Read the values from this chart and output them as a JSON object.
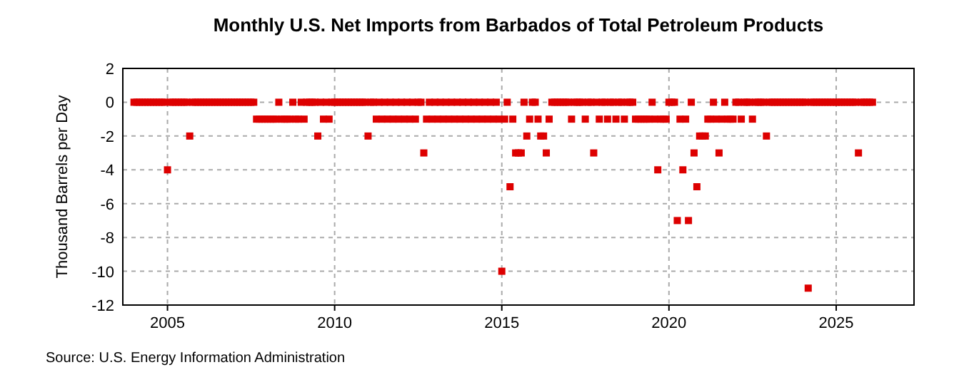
{
  "chart_data": {
    "type": "scatter",
    "title": "Monthly U.S. Net Imports from Barbados of Total Petroleum Products",
    "ylabel": "Thousand Barrels per Day",
    "annotations": [
      "Source: U.S. Energy Information Administration"
    ],
    "x": [
      "2004-01",
      "2004-02",
      "2004-03",
      "2004-04",
      "2004-05",
      "2004-06",
      "2004-07",
      "2004-08",
      "2004-09",
      "2004-10",
      "2004-11",
      "2004-12",
      "2005-01",
      "2005-02",
      "2005-03",
      "2005-04",
      "2005-05",
      "2005-06",
      "2005-07",
      "2005-08",
      "2005-09",
      "2005-10",
      "2005-11",
      "2005-12",
      "2006-01",
      "2006-02",
      "2006-03",
      "2006-04",
      "2006-05",
      "2006-06",
      "2006-07",
      "2006-08",
      "2006-09",
      "2006-10",
      "2006-11",
      "2006-12",
      "2007-01",
      "2007-02",
      "2007-03",
      "2007-04",
      "2007-05",
      "2007-06",
      "2007-07",
      "2007-08",
      "2007-09",
      "2007-10",
      "2007-11",
      "2007-12",
      "2008-01",
      "2008-02",
      "2008-03",
      "2008-04",
      "2008-05",
      "2008-06",
      "2008-07",
      "2008-08",
      "2008-09",
      "2008-10",
      "2008-11",
      "2008-12",
      "2009-01",
      "2009-02",
      "2009-03",
      "2009-04",
      "2009-05",
      "2009-06",
      "2009-07",
      "2009-08",
      "2009-09",
      "2009-10",
      "2009-11",
      "2009-12",
      "2010-01",
      "2010-02",
      "2010-03",
      "2010-04",
      "2010-05",
      "2010-06",
      "2010-07",
      "2010-08",
      "2010-09",
      "2010-10",
      "2010-11",
      "2010-12",
      "2011-01",
      "2011-02",
      "2011-03",
      "2011-04",
      "2011-05",
      "2011-06",
      "2011-07",
      "2011-08",
      "2011-09",
      "2011-10",
      "2011-11",
      "2011-12",
      "2012-01",
      "2012-02",
      "2012-03",
      "2012-04",
      "2012-05",
      "2012-06",
      "2012-07",
      "2012-08",
      "2012-09",
      "2012-10",
      "2012-11",
      "2012-12",
      "2013-01",
      "2013-02",
      "2013-03",
      "2013-04",
      "2013-05",
      "2013-06",
      "2013-07",
      "2013-08",
      "2013-09",
      "2013-10",
      "2013-11",
      "2013-12",
      "2014-01",
      "2014-02",
      "2014-03",
      "2014-04",
      "2014-05",
      "2014-06",
      "2014-07",
      "2014-08",
      "2014-09",
      "2014-10",
      "2014-11",
      "2014-12",
      "2015-01",
      "2015-02",
      "2015-03",
      "2015-04",
      "2015-05",
      "2015-06",
      "2015-07",
      "2015-08",
      "2015-09",
      "2015-10",
      "2015-11",
      "2015-12",
      "2016-01",
      "2016-02",
      "2016-03",
      "2016-04",
      "2016-05",
      "2016-06",
      "2016-07",
      "2016-08",
      "2016-09",
      "2016-10",
      "2016-11",
      "2016-12",
      "2017-01",
      "2017-02",
      "2017-03",
      "2017-04",
      "2017-05",
      "2017-06",
      "2017-07",
      "2017-08",
      "2017-09",
      "2017-10",
      "2017-11",
      "2017-12",
      "2018-01",
      "2018-02",
      "2018-03",
      "2018-04",
      "2018-05",
      "2018-06",
      "2018-07",
      "2018-08",
      "2018-09",
      "2018-10",
      "2018-11",
      "2018-12",
      "2019-01",
      "2019-02",
      "2019-03",
      "2019-04",
      "2019-05",
      "2019-06",
      "2019-07",
      "2019-08",
      "2019-09",
      "2019-10",
      "2019-11",
      "2019-12",
      "2020-01",
      "2020-02",
      "2020-03",
      "2020-04",
      "2020-05",
      "2020-06",
      "2020-07",
      "2020-08",
      "2020-09",
      "2020-10",
      "2020-11",
      "2020-12",
      "2021-01",
      "2021-02",
      "2021-03",
      "2021-04",
      "2021-05",
      "2021-06",
      "2021-07",
      "2021-08",
      "2021-09",
      "2021-10",
      "2021-11",
      "2021-12",
      "2022-01",
      "2022-02",
      "2022-03",
      "2022-04",
      "2022-05",
      "2022-06",
      "2022-07",
      "2022-08",
      "2022-09",
      "2022-10",
      "2022-11",
      "2022-12",
      "2023-01",
      "2023-02",
      "2023-03",
      "2023-04",
      "2023-05",
      "2023-06",
      "2023-07",
      "2023-08",
      "2023-09",
      "2023-10",
      "2023-11",
      "2023-12",
      "2024-01",
      "2024-02",
      "2024-03",
      "2024-04",
      "2024-05",
      "2024-06",
      "2024-07",
      "2024-08",
      "2024-09",
      "2024-10",
      "2024-11",
      "2024-12",
      "2025-01",
      "2025-02",
      "2025-03",
      "2025-04",
      "2025-05",
      "2025-06",
      "2025-07",
      "2025-08",
      "2025-09",
      "2025-10",
      "2025-11",
      "2025-12",
      "2026-01",
      "2026-02"
    ],
    "series": [
      {
        "color": "#dd0000",
        "values": [
          0,
          0,
          0,
          0,
          0,
          0,
          0,
          0,
          0,
          0,
          0,
          0,
          -4,
          0,
          0,
          0,
          0,
          0,
          0,
          0,
          -2,
          0,
          0,
          0,
          0,
          0,
          0,
          0,
          0,
          0,
          0,
          0,
          0,
          0,
          0,
          0,
          0,
          0,
          0,
          0,
          0,
          0,
          0,
          0,
          -1,
          -1,
          -1,
          -1,
          -1,
          -1,
          -1,
          -1,
          0,
          -1,
          -1,
          -1,
          -1,
          0,
          -1,
          -1,
          0,
          -1,
          0,
          0,
          0,
          0,
          -2,
          0,
          -1,
          0,
          -1,
          0,
          0,
          0,
          0,
          0,
          0,
          0,
          0,
          0,
          0,
          0,
          0,
          0,
          -2,
          0,
          0,
          -1,
          0,
          -1,
          0,
          -1,
          0,
          -1,
          0,
          -1,
          0,
          -1,
          0,
          -1,
          0,
          -1,
          0,
          0,
          -3,
          -1,
          0,
          -1,
          0,
          -1,
          0,
          -1,
          0,
          -1,
          0,
          -1,
          0,
          -1,
          0,
          -1,
          0,
          -1,
          0,
          -1,
          0,
          -1,
          0,
          -1,
          0,
          -1,
          0,
          -1,
          -10,
          -1,
          0,
          -5,
          -1,
          -3,
          -3,
          -3,
          0,
          -2,
          -1,
          0,
          0,
          -1,
          -2,
          -2,
          -3,
          -1,
          0,
          0,
          0,
          0,
          0,
          0,
          0,
          -1,
          0,
          0,
          0,
          0,
          -1,
          0,
          0,
          -3,
          0,
          -1,
          0,
          0,
          -1,
          0,
          0,
          -1,
          0,
          0,
          -1,
          0,
          0,
          0,
          -1,
          -1,
          -1,
          -1,
          -1,
          -1,
          0,
          -1,
          -4,
          -1,
          -1,
          -1,
          0,
          0,
          0,
          -7,
          -1,
          -4,
          -1,
          -7,
          0,
          -3,
          -5,
          -2,
          -2,
          -2,
          -1,
          -1,
          0,
          -1,
          -3,
          -1,
          0,
          -1,
          -1,
          -1,
          0,
          0,
          -1,
          0,
          0,
          0,
          -1,
          0,
          0,
          0,
          0,
          -2,
          0,
          0,
          0,
          0,
          0,
          0,
          0,
          0,
          0,
          0,
          0,
          0,
          0,
          0,
          -11,
          0,
          0,
          0,
          0,
          0,
          0,
          0,
          0,
          0,
          0,
          0,
          0,
          0,
          0,
          0,
          0,
          0,
          -3,
          0,
          0,
          0,
          0,
          0
        ]
      }
    ],
    "xlim": [
      "2003-09",
      "2027-05"
    ],
    "xticks": [
      "2005",
      "2010",
      "2015",
      "2020",
      "2025"
    ],
    "ylim": [
      -12,
      2
    ],
    "yticks": [
      2,
      0,
      -2,
      -4,
      -6,
      -8,
      -10,
      -12
    ],
    "grid": true,
    "marker": "square"
  }
}
